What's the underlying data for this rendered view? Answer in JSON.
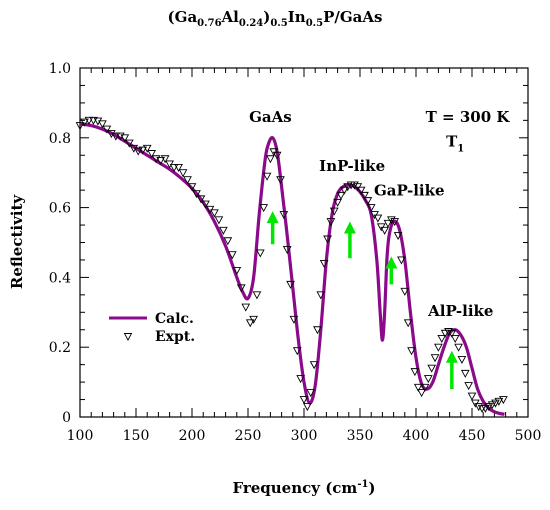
{
  "chart_data": {
    "type": "line",
    "title": {
      "open": "(Ga",
      "ga_sub": "0.76",
      "al": "Al",
      "al_sub": "0.24",
      "close": ")",
      "group_sub": "0.5",
      "in": "In",
      "in_sub": "0.5",
      "tail": "P/GaAs"
    },
    "xlabel": {
      "main": "Frequency (cm",
      "sup": "-1",
      "close": ")"
    },
    "ylabel": "Reflectivity",
    "xlim": [
      100,
      500
    ],
    "ylim": [
      0,
      1.0
    ],
    "xticks": [
      100,
      150,
      200,
      250,
      300,
      350,
      400,
      450,
      500
    ],
    "yticks": [
      "0",
      "0.2",
      "0.4",
      "0.6",
      "0.8",
      "1.0"
    ],
    "legend_position": "lower-left",
    "series": [
      {
        "name": "Calc.",
        "style": "line",
        "color": "#8b0a8b",
        "x": [
          100,
          110,
          120,
          130,
          140,
          150,
          160,
          170,
          180,
          190,
          200,
          210,
          220,
          230,
          240,
          245,
          250,
          255,
          260,
          265,
          268,
          272,
          276,
          280,
          285,
          290,
          295,
          300,
          305,
          310,
          315,
          320,
          325,
          330,
          335,
          340,
          345,
          350,
          355,
          360,
          365,
          368,
          370,
          372,
          374,
          376,
          380,
          385,
          390,
          395,
          400,
          405,
          410,
          415,
          420,
          425,
          430,
          435,
          440,
          445,
          450,
          455,
          460,
          465,
          470,
          475,
          479
        ],
        "y": [
          0.84,
          0.835,
          0.825,
          0.81,
          0.79,
          0.77,
          0.75,
          0.73,
          0.71,
          0.685,
          0.655,
          0.615,
          0.56,
          0.49,
          0.4,
          0.36,
          0.34,
          0.4,
          0.58,
          0.73,
          0.78,
          0.8,
          0.76,
          0.66,
          0.52,
          0.37,
          0.22,
          0.1,
          0.04,
          0.09,
          0.25,
          0.45,
          0.58,
          0.64,
          0.66,
          0.665,
          0.66,
          0.645,
          0.62,
          0.58,
          0.45,
          0.3,
          0.22,
          0.3,
          0.45,
          0.52,
          0.56,
          0.54,
          0.45,
          0.3,
          0.17,
          0.095,
          0.08,
          0.1,
          0.15,
          0.2,
          0.24,
          0.25,
          0.235,
          0.2,
          0.14,
          0.08,
          0.045,
          0.025,
          0.015,
          0.01,
          0.008
        ]
      },
      {
        "name": "Expt.",
        "style": "markers",
        "marker": "open-triangle-down",
        "color": "#000000",
        "x": [
          100,
          104,
          108,
          112,
          116,
          120,
          124,
          128,
          132,
          136,
          140,
          144,
          148,
          152,
          156,
          160,
          164,
          168,
          172,
          176,
          180,
          184,
          188,
          192,
          196,
          200,
          204,
          208,
          212,
          216,
          220,
          224,
          228,
          232,
          236,
          240,
          244,
          248,
          252,
          255,
          258,
          261,
          264,
          267,
          270,
          273,
          276,
          279,
          282,
          285,
          288,
          291,
          294,
          297,
          300,
          303,
          306,
          309,
          312,
          315,
          318,
          321,
          324,
          327,
          330,
          333,
          336,
          339,
          342,
          345,
          348,
          351,
          354,
          357,
          360,
          363,
          366,
          369,
          372,
          375,
          378,
          381,
          384,
          387,
          390,
          393,
          396,
          399,
          402,
          405,
          408,
          411,
          414,
          417,
          420,
          423,
          426,
          429,
          432,
          435,
          438,
          441,
          444,
          447,
          450,
          453,
          456,
          459,
          462,
          465,
          468,
          471,
          474,
          478
        ],
        "y": [
          0.835,
          0.845,
          0.85,
          0.85,
          0.848,
          0.84,
          0.825,
          0.812,
          0.805,
          0.805,
          0.8,
          0.785,
          0.77,
          0.762,
          0.765,
          0.77,
          0.755,
          0.74,
          0.735,
          0.74,
          0.725,
          0.715,
          0.715,
          0.7,
          0.68,
          0.66,
          0.64,
          0.625,
          0.61,
          0.595,
          0.585,
          0.565,
          0.535,
          0.505,
          0.465,
          0.42,
          0.37,
          0.315,
          0.27,
          0.28,
          0.35,
          0.47,
          0.6,
          0.69,
          0.74,
          0.76,
          0.75,
          0.68,
          0.58,
          0.48,
          0.38,
          0.28,
          0.19,
          0.11,
          0.05,
          0.03,
          0.07,
          0.15,
          0.25,
          0.35,
          0.44,
          0.51,
          0.56,
          0.59,
          0.615,
          0.635,
          0.65,
          0.66,
          0.665,
          0.665,
          0.66,
          0.65,
          0.635,
          0.62,
          0.6,
          0.58,
          0.57,
          0.545,
          0.535,
          0.555,
          0.565,
          0.56,
          0.52,
          0.45,
          0.36,
          0.27,
          0.19,
          0.13,
          0.085,
          0.07,
          0.085,
          0.11,
          0.14,
          0.17,
          0.2,
          0.225,
          0.24,
          0.245,
          0.24,
          0.225,
          0.2,
          0.165,
          0.125,
          0.09,
          0.06,
          0.04,
          0.03,
          0.025,
          0.025,
          0.03,
          0.035,
          0.04,
          0.045,
          0.05
        ]
      }
    ],
    "annotations": [
      {
        "text": "GaAs",
        "x": 270,
        "y": 0.845
      },
      {
        "text": "InP-like",
        "x": 343,
        "y": 0.705
      },
      {
        "text": "GaP-like",
        "x": 394,
        "y": 0.635
      },
      {
        "text": "AlP-like",
        "x": 440,
        "y": 0.29
      },
      {
        "text": "T = 300 K",
        "x": 446,
        "y": 0.845
      }
    ],
    "t1_label": {
      "main": "T",
      "sub": "1",
      "x": 435,
      "y": 0.775
    },
    "arrows": [
      {
        "x": 272,
        "y_tail": 0.495,
        "y_head": 0.59,
        "color": "#00e600"
      },
      {
        "x": 341,
        "y_tail": 0.455,
        "y_head": 0.56,
        "color": "#00e600"
      },
      {
        "x": 378,
        "y_tail": 0.38,
        "y_head": 0.46,
        "color": "#00e600"
      },
      {
        "x": 432,
        "y_tail": 0.08,
        "y_head": 0.19,
        "color": "#00e600"
      }
    ]
  }
}
